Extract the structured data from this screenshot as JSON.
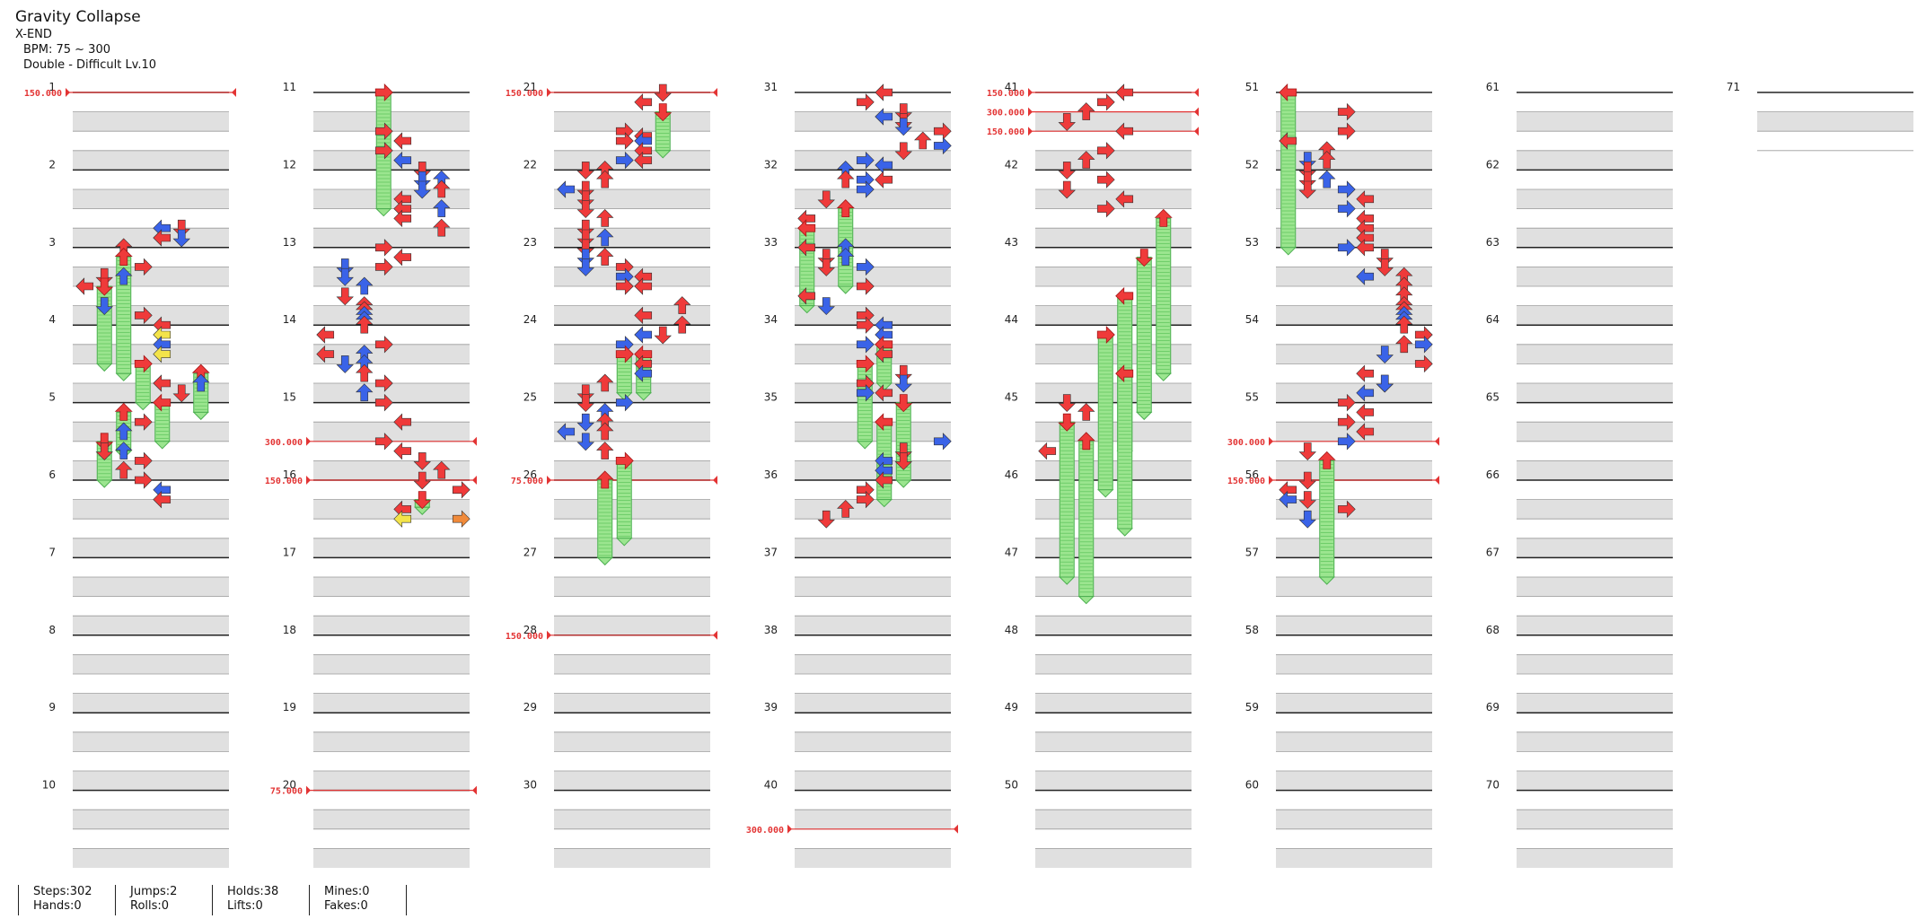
{
  "song": {
    "title": "Gravity Collapse",
    "artist": "X-END",
    "bpm_text": "BPM: 75 ~ 300",
    "difficulty_text": "Double - Difficult Lv.10"
  },
  "stats": [
    {
      "top": "Steps:302",
      "bottom": "Hands:0"
    },
    {
      "top": "Jumps:2",
      "bottom": "Rolls:0"
    },
    {
      "top": "Holds:38",
      "bottom": "Lifts:0"
    },
    {
      "top": "Mines:0",
      "bottom": "Fakes:0"
    }
  ],
  "colors": {
    "stripe": "#e0e0e0",
    "beat_line": "#222222",
    "bpm_line": "#e33434",
    "arrow_red": "#ef3a3a",
    "arrow_blue": "#3a63e8",
    "arrow_yellow": "#f3e34a",
    "arrow_purple": "#b34cf0",
    "arrow_orange": "#f08a3a",
    "hold_green": "#9be58f"
  },
  "icons": {
    "left": "arrow-left-icon",
    "down": "arrow-down-icon",
    "up": "arrow-up-icon",
    "right": "arrow-right-icon"
  },
  "chart_data": {
    "type": "table",
    "lanes": 8,
    "lane_directions": [
      "left",
      "down",
      "up",
      "right",
      "left",
      "down",
      "up",
      "right"
    ],
    "measures": 71,
    "measures_per_column": 10,
    "bpm_changes": [
      {
        "beat": 0,
        "label": "150.000"
      },
      {
        "beat": 58,
        "label": "300.000"
      },
      {
        "beat": 60,
        "label": "150.000"
      },
      {
        "beat": 76,
        "label": "75.000"
      },
      {
        "beat": 80,
        "label": "150.000"
      },
      {
        "beat": 100,
        "label": "75.000"
      },
      {
        "beat": 108,
        "label": "150.000"
      },
      {
        "beat": 158,
        "label": "300.000"
      },
      {
        "beat": 160,
        "label": "150.000"
      },
      {
        "beat": 161,
        "label": "300.000"
      },
      {
        "beat": 162,
        "label": "150.000"
      },
      {
        "beat": 218,
        "label": "300.000"
      },
      {
        "beat": 220,
        "label": "150.000"
      }
    ],
    "notes": [
      [
        7,
        4,
        "b"
      ],
      [
        7,
        5,
        "r"
      ],
      [
        7.5,
        4,
        "r"
      ],
      [
        7.5,
        5,
        "b"
      ],
      [
        8,
        2,
        "r"
      ],
      [
        8.5,
        2,
        "h",
        1.5
      ],
      [
        9,
        3,
        "r"
      ],
      [
        9.5,
        1,
        "r"
      ],
      [
        9.5,
        2,
        "b"
      ],
      [
        10,
        0,
        "r"
      ],
      [
        10,
        1,
        "h",
        1
      ],
      [
        11,
        1,
        "b"
      ],
      [
        11.5,
        3,
        "r"
      ],
      [
        12,
        4,
        "r"
      ],
      [
        12.5,
        4,
        "y"
      ],
      [
        13,
        4,
        "b"
      ],
      [
        13.5,
        4,
        "y"
      ],
      [
        14,
        3,
        "h",
        0.5
      ],
      [
        14.5,
        6,
        "h",
        0.5
      ],
      [
        15,
        4,
        "r"
      ],
      [
        15,
        6,
        "b"
      ],
      [
        15.5,
        5,
        "r"
      ],
      [
        16,
        4,
        "h",
        0.5
      ],
      [
        16.5,
        2,
        "h",
        0.5
      ],
      [
        17,
        3,
        "r"
      ],
      [
        17.5,
        2,
        "b"
      ],
      [
        18,
        1,
        "h",
        0.5
      ],
      [
        18.5,
        1,
        "r"
      ],
      [
        18.5,
        2,
        "b"
      ],
      [
        19,
        3,
        "r"
      ],
      [
        19.5,
        2,
        "r"
      ],
      [
        20,
        3,
        "r"
      ],
      [
        20.5,
        4,
        "b"
      ],
      [
        21,
        4,
        "r"
      ],
      [
        0,
        3,
        "h",
        1.5
      ],
      [
        2,
        3,
        "r"
      ],
      [
        2.5,
        4,
        "r"
      ],
      [
        3,
        3,
        "r"
      ],
      [
        3.5,
        4,
        "b"
      ],
      [
        4,
        5,
        "r"
      ],
      [
        4.5,
        5,
        "b"
      ],
      [
        4.5,
        6,
        "b"
      ],
      [
        5,
        5,
        "b"
      ],
      [
        5,
        6,
        "r"
      ],
      [
        5.5,
        4,
        "r"
      ],
      [
        6,
        4,
        "r"
      ],
      [
        6,
        6,
        "b"
      ],
      [
        6.5,
        4,
        "r"
      ],
      [
        7,
        6,
        "r"
      ],
      [
        8,
        3,
        "r"
      ],
      [
        8.5,
        4,
        "r"
      ],
      [
        9,
        1,
        "b"
      ],
      [
        9,
        3,
        "r"
      ],
      [
        9.5,
        1,
        "b"
      ],
      [
        10,
        2,
        "b"
      ],
      [
        10.5,
        1,
        "r"
      ],
      [
        11,
        2,
        "r"
      ],
      [
        11.25,
        2,
        "r"
      ],
      [
        11.5,
        2,
        "b"
      ],
      [
        11.75,
        2,
        "b"
      ],
      [
        12,
        2,
        "r"
      ],
      [
        12.5,
        0,
        "r"
      ],
      [
        13,
        3,
        "r"
      ],
      [
        13.5,
        0,
        "r"
      ],
      [
        13.5,
        2,
        "b"
      ],
      [
        14,
        1,
        "b"
      ],
      [
        14,
        2,
        "b"
      ],
      [
        14.5,
        2,
        "r"
      ],
      [
        15,
        3,
        "r"
      ],
      [
        15.5,
        2,
        "b"
      ],
      [
        16,
        3,
        "r"
      ],
      [
        17,
        4,
        "r"
      ],
      [
        18,
        3,
        "r"
      ],
      [
        18.5,
        4,
        "r"
      ],
      [
        19,
        5,
        "r"
      ],
      [
        19.5,
        6,
        "r"
      ],
      [
        20,
        5,
        "r"
      ],
      [
        20.5,
        7,
        "r"
      ],
      [
        21,
        5,
        "h",
        0.1
      ],
      [
        21.5,
        4,
        "r"
      ],
      [
        22,
        4,
        "y"
      ],
      [
        22,
        7,
        "o"
      ],
      [
        0,
        5,
        "r"
      ],
      [
        0.5,
        4,
        "r"
      ],
      [
        1,
        5,
        "h",
        0.5
      ],
      [
        2,
        3,
        "r"
      ],
      [
        2.25,
        4,
        "r"
      ],
      [
        2.5,
        3,
        "r"
      ],
      [
        2.5,
        4,
        "b"
      ],
      [
        3,
        4,
        "r"
      ],
      [
        3.5,
        3,
        "b"
      ],
      [
        3.5,
        4,
        "r"
      ],
      [
        4,
        1,
        "r"
      ],
      [
        4,
        2,
        "r"
      ],
      [
        4.5,
        2,
        "r"
      ],
      [
        5,
        0,
        "b"
      ],
      [
        5,
        1,
        "r"
      ],
      [
        5.5,
        1,
        "r"
      ],
      [
        6,
        1,
        "r"
      ],
      [
        6.5,
        2,
        "r"
      ],
      [
        7,
        1,
        "r"
      ],
      [
        7.5,
        1,
        "r"
      ],
      [
        7.5,
        2,
        "b"
      ],
      [
        8,
        1,
        "r"
      ],
      [
        8.5,
        1,
        "b"
      ],
      [
        8.5,
        2,
        "r"
      ],
      [
        9,
        1,
        "b"
      ],
      [
        9,
        3,
        "r"
      ],
      [
        9.5,
        3,
        "b"
      ],
      [
        9.5,
        4,
        "r"
      ],
      [
        10,
        4,
        "r"
      ],
      [
        10,
        3,
        "r"
      ],
      [
        11,
        6,
        "r"
      ],
      [
        11.5,
        4,
        "r"
      ],
      [
        12,
        6,
        "r"
      ],
      [
        12.5,
        4,
        "b"
      ],
      [
        12.5,
        5,
        "r"
      ],
      [
        13,
        3,
        "b"
      ],
      [
        13.5,
        3,
        "h",
        0.5
      ],
      [
        13.5,
        4,
        "h",
        0.5
      ],
      [
        14,
        4,
        "r"
      ],
      [
        14.5,
        4,
        "b"
      ],
      [
        15,
        2,
        "r"
      ],
      [
        15.5,
        1,
        "r"
      ],
      [
        16,
        1,
        "r"
      ],
      [
        16,
        3,
        "b"
      ],
      [
        16.5,
        2,
        "b"
      ],
      [
        17,
        1,
        "b"
      ],
      [
        17,
        2,
        "r"
      ],
      [
        17.5,
        0,
        "b"
      ],
      [
        17.5,
        2,
        "r"
      ],
      [
        18,
        1,
        "b"
      ],
      [
        18.5,
        2,
        "r"
      ],
      [
        19,
        3,
        "h",
        1
      ],
      [
        20,
        2,
        "h",
        1
      ],
      [
        0,
        4,
        "r"
      ],
      [
        0.5,
        3,
        "r"
      ],
      [
        1,
        5,
        "r"
      ],
      [
        1.25,
        4,
        "b"
      ],
      [
        1.5,
        5,
        "r"
      ],
      [
        1.75,
        5,
        "b"
      ],
      [
        2,
        7,
        "r"
      ],
      [
        2.5,
        6,
        "r"
      ],
      [
        2.75,
        7,
        "b"
      ],
      [
        3,
        5,
        "r"
      ],
      [
        3.5,
        3,
        "b"
      ],
      [
        3.75,
        4,
        "b"
      ],
      [
        4,
        2,
        "b"
      ],
      [
        4.5,
        2,
        "r"
      ],
      [
        4.5,
        3,
        "b"
      ],
      [
        4.5,
        4,
        "r"
      ],
      [
        5,
        3,
        "b"
      ],
      [
        5.5,
        1,
        "r"
      ],
      [
        6,
        2,
        "h",
        1
      ],
      [
        6.5,
        0,
        "r"
      ],
      [
        7,
        0,
        "h",
        1
      ],
      [
        8,
        0,
        "r"
      ],
      [
        8,
        2,
        "b"
      ],
      [
        8.5,
        1,
        "r"
      ],
      [
        8.5,
        2,
        "b"
      ],
      [
        9,
        1,
        "r"
      ],
      [
        9,
        3,
        "b"
      ],
      [
        10,
        3,
        "r"
      ],
      [
        10.5,
        0,
        "r"
      ],
      [
        11,
        1,
        "b"
      ],
      [
        11.5,
        3,
        "r"
      ],
      [
        12,
        3,
        "r"
      ],
      [
        12,
        4,
        "b"
      ],
      [
        12.5,
        4,
        "b"
      ],
      [
        13,
        3,
        "b"
      ],
      [
        13,
        4,
        "h",
        0.5
      ],
      [
        13.5,
        4,
        "r"
      ],
      [
        14,
        3,
        "h",
        1
      ],
      [
        14.5,
        5,
        "r"
      ],
      [
        15,
        3,
        "r"
      ],
      [
        15,
        5,
        "b"
      ],
      [
        15.5,
        3,
        "b"
      ],
      [
        15.5,
        4,
        "r"
      ],
      [
        16,
        5,
        "h",
        1
      ],
      [
        17,
        4,
        "h",
        1
      ],
      [
        18,
        7,
        "b"
      ],
      [
        18.5,
        5,
        "r"
      ],
      [
        19,
        5,
        "r"
      ],
      [
        19,
        4,
        "b"
      ],
      [
        19.5,
        4,
        "b"
      ],
      [
        20,
        4,
        "r"
      ],
      [
        20.5,
        3,
        "r"
      ],
      [
        21,
        3,
        "r"
      ],
      [
        21.5,
        2,
        "r"
      ],
      [
        22,
        1,
        "r"
      ],
      [
        0,
        4,
        "r"
      ],
      [
        0.5,
        3,
        "r"
      ],
      [
        1,
        2,
        "r"
      ],
      [
        1.5,
        1,
        "r"
      ],
      [
        2,
        4,
        "r"
      ],
      [
        3,
        3,
        "r"
      ],
      [
        3.5,
        2,
        "r"
      ],
      [
        4,
        1,
        "r"
      ],
      [
        4.5,
        3,
        "r"
      ],
      [
        5,
        1,
        "r"
      ],
      [
        5.5,
        4,
        "r"
      ],
      [
        6,
        3,
        "r"
      ],
      [
        6.5,
        6,
        "h",
        2
      ],
      [
        8.5,
        5,
        "h",
        2
      ],
      [
        10.5,
        4,
        "h",
        2
      ],
      [
        12.5,
        3,
        "h",
        2
      ],
      [
        14.5,
        4,
        "h",
        2
      ],
      [
        16,
        1,
        "r"
      ],
      [
        16.5,
        2,
        "r"
      ],
      [
        17,
        1,
        "h",
        2
      ],
      [
        18,
        2,
        "h",
        2
      ],
      [
        18.5,
        0,
        "r"
      ],
      [
        0,
        0,
        "h",
        2
      ],
      [
        1,
        3,
        "r"
      ],
      [
        2,
        3,
        "r"
      ],
      [
        2.5,
        0,
        "r"
      ],
      [
        3,
        2,
        "r"
      ],
      [
        3.5,
        1,
        "b"
      ],
      [
        3.5,
        2,
        "r"
      ],
      [
        4,
        1,
        "r"
      ],
      [
        4.5,
        1,
        "r"
      ],
      [
        4.5,
        2,
        "b"
      ],
      [
        5,
        1,
        "r"
      ],
      [
        5,
        3,
        "b"
      ],
      [
        5.5,
        4,
        "r"
      ],
      [
        6,
        3,
        "b"
      ],
      [
        6.5,
        4,
        "r"
      ],
      [
        7,
        4,
        "r"
      ],
      [
        7.5,
        4,
        "r"
      ],
      [
        8,
        3,
        "b"
      ],
      [
        8,
        4,
        "r"
      ],
      [
        8.5,
        5,
        "r"
      ],
      [
        9,
        5,
        "r"
      ],
      [
        9.5,
        4,
        "b"
      ],
      [
        9.5,
        6,
        "r"
      ],
      [
        10,
        6,
        "r"
      ],
      [
        10.5,
        6,
        "r"
      ],
      [
        11,
        6,
        "r"
      ],
      [
        11.25,
        6,
        "r"
      ],
      [
        11.5,
        6,
        "b"
      ],
      [
        11.75,
        6,
        "b"
      ],
      [
        12,
        6,
        "r"
      ],
      [
        12.5,
        7,
        "r"
      ],
      [
        13,
        6,
        "r"
      ],
      [
        13,
        7,
        "b"
      ],
      [
        13.5,
        5,
        "b"
      ],
      [
        14,
        7,
        "r"
      ],
      [
        14.5,
        4,
        "r"
      ],
      [
        15,
        5,
        "r"
      ],
      [
        15,
        5,
        "b"
      ],
      [
        15.5,
        4,
        "b"
      ],
      [
        16,
        3,
        "r"
      ],
      [
        16.5,
        4,
        "r"
      ],
      [
        17,
        3,
        "r"
      ],
      [
        17.5,
        4,
        "r"
      ],
      [
        18,
        3,
        "b"
      ],
      [
        18.5,
        1,
        "r"
      ],
      [
        19,
        2,
        "h",
        1.5
      ],
      [
        20,
        1,
        "r"
      ],
      [
        20.5,
        0,
        "r"
      ],
      [
        21,
        1,
        "r"
      ],
      [
        21,
        0,
        "b"
      ],
      [
        21.5,
        3,
        "r"
      ],
      [
        22,
        1,
        "b"
      ]
    ]
  }
}
